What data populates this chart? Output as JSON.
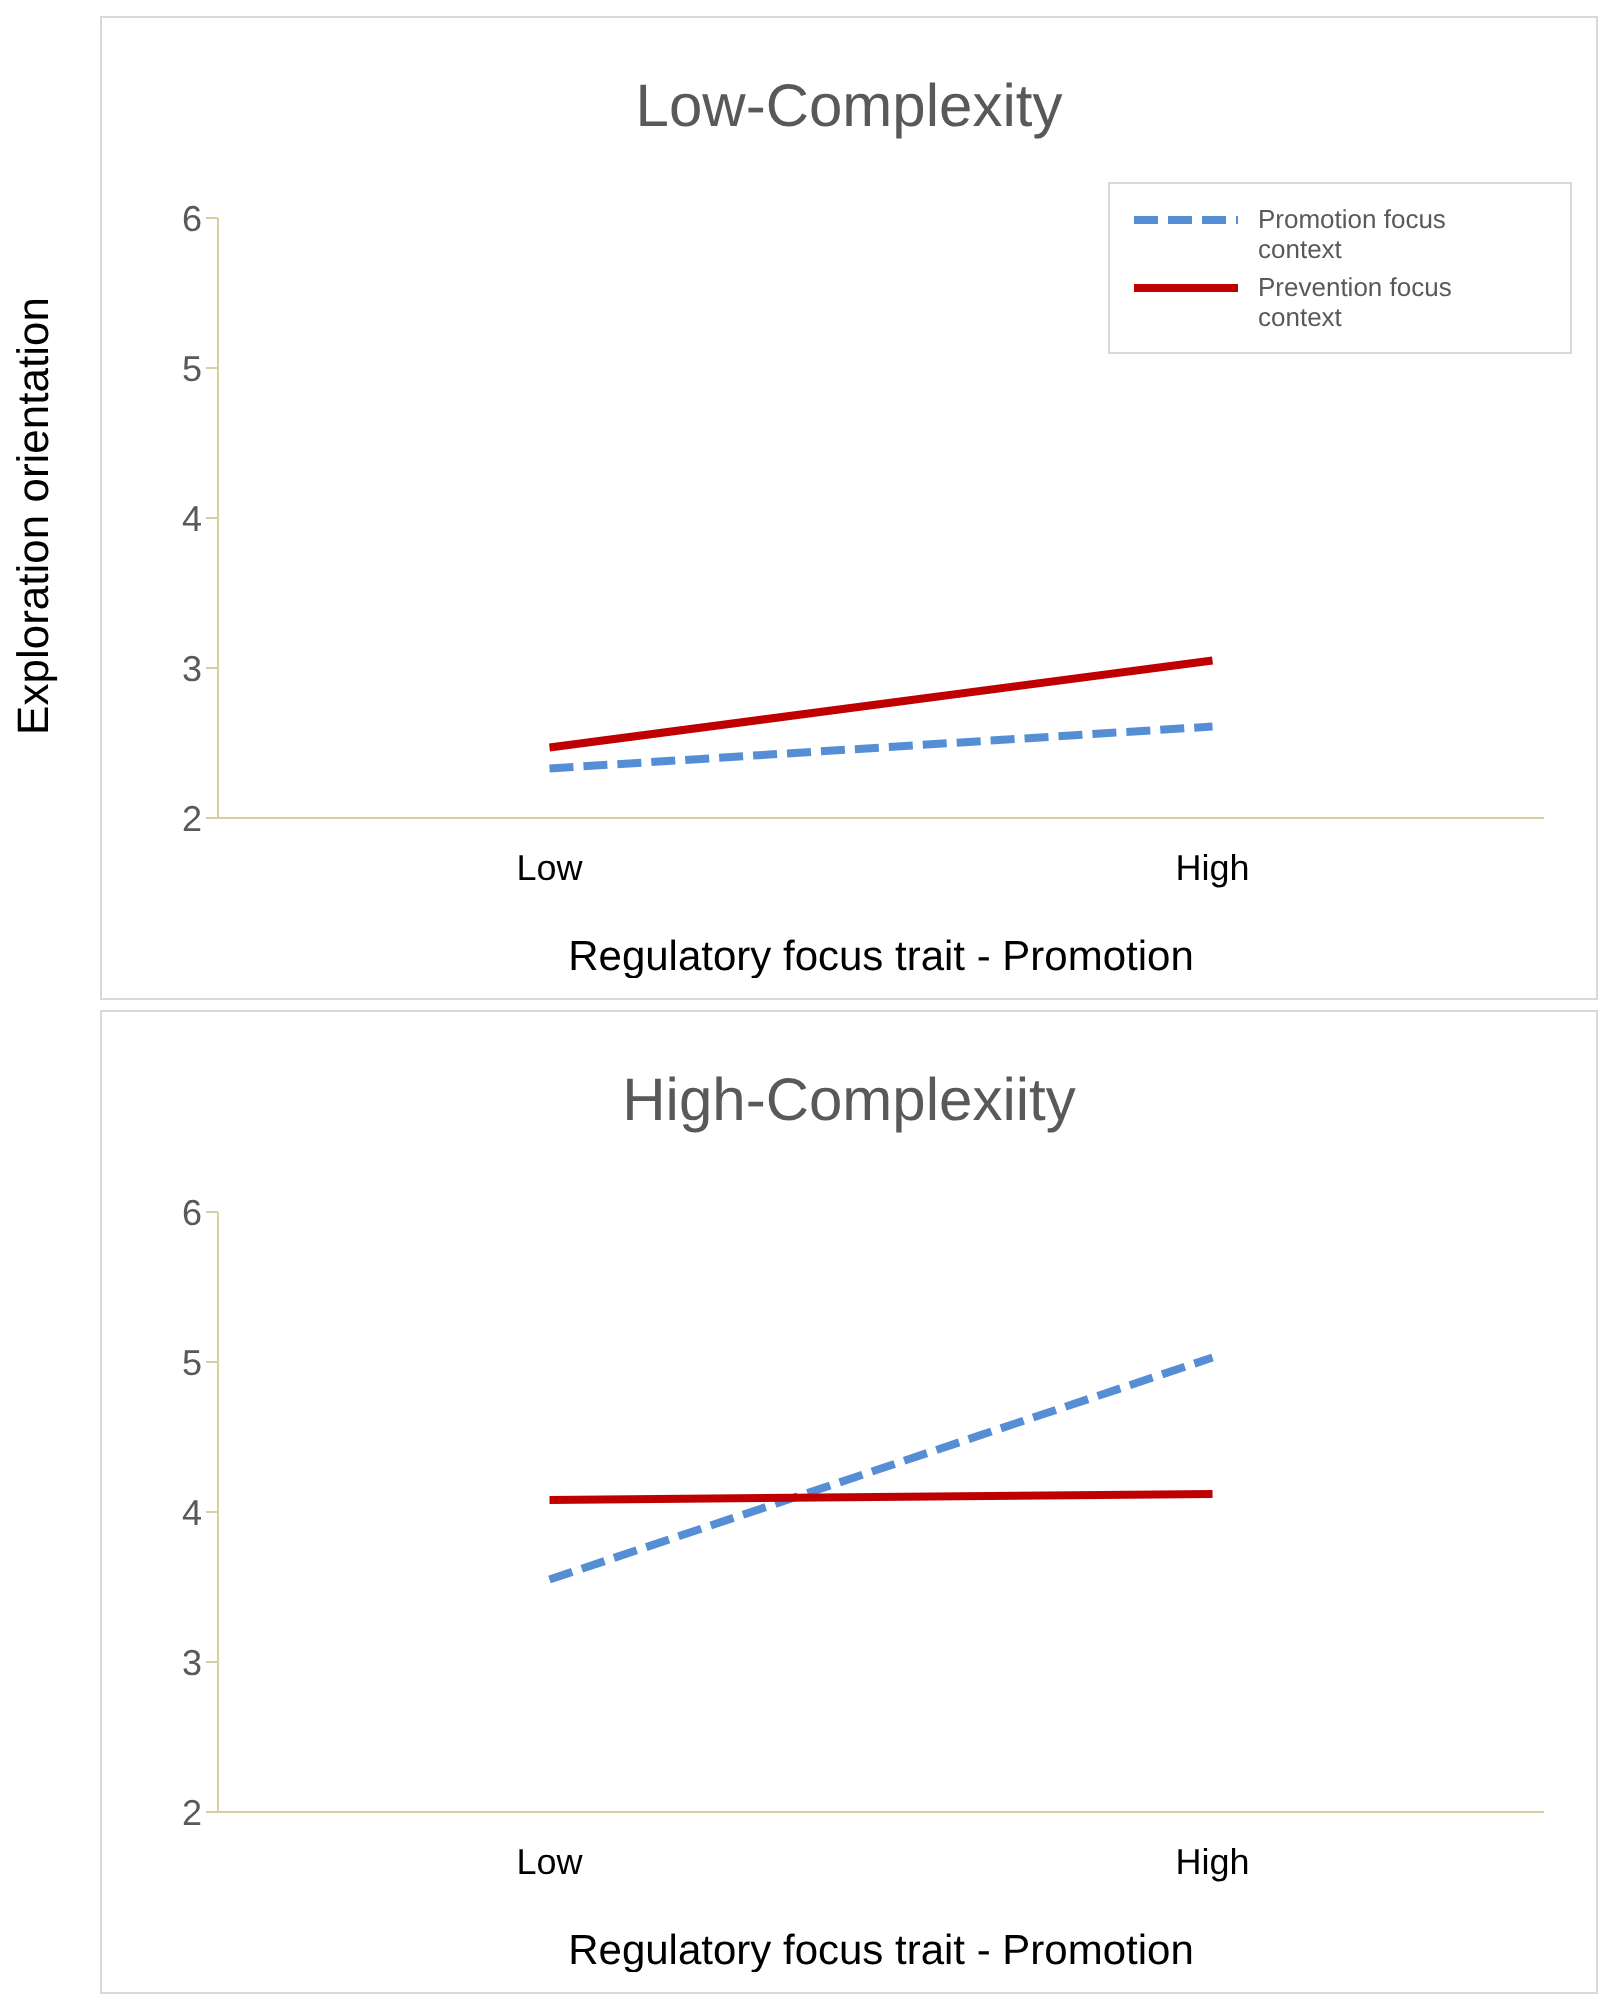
{
  "chart_data": [
    {
      "type": "line",
      "title": "Low-Complexity",
      "xlabel": "Regulatory focus trait - Promotion",
      "ylabel": "Exploration orientation",
      "categories": [
        "Low",
        "High"
      ],
      "ylim": [
        2,
        6
      ],
      "yticks": [
        2,
        3,
        4,
        5,
        6
      ],
      "grid": false,
      "legend": "top right",
      "marker": "none",
      "series": [
        {
          "name": "Promotion focus context",
          "color": "#558ed5",
          "line_style": "dashed",
          "values": [
            2.33,
            2.61
          ]
        },
        {
          "name": "Prevention focus context",
          "color": "#c00000",
          "line_style": "solid",
          "values": [
            2.47,
            3.05
          ]
        }
      ]
    },
    {
      "type": "line",
      "title": "High-Complexiity",
      "xlabel": "Regulatory focus trait - Promotion",
      "categories": [
        "Low",
        "High"
      ],
      "ylim": [
        2,
        6
      ],
      "yticks": [
        2,
        3,
        4,
        5,
        6
      ],
      "grid": false,
      "legend": false,
      "marker": "none",
      "series": [
        {
          "color": "#558ed5",
          "line_style": "dashed",
          "values": [
            3.55,
            5.03
          ]
        },
        {
          "color": "#c00000",
          "line_style": "solid",
          "values": [
            4.08,
            4.12
          ]
        }
      ]
    }
  ]
}
